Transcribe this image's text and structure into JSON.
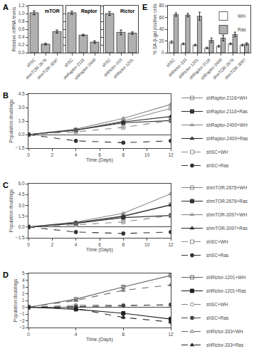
{
  "chart_data": [
    {
      "type": "bar",
      "title": "mTOR",
      "annotations": [
        "A"
      ],
      "categories": [
        "shSC",
        "shmTOR-2676",
        "shmTOR-3097"
      ],
      "values": [
        1.02,
        0.22,
        0.54
      ],
      "errors": [
        0.05,
        0.02,
        0.04
      ],
      "color": "#b0b0b0",
      "ylabel": "Relative mRNA levels",
      "ylim": [
        0,
        1.2
      ],
      "yticks": [
        {
          "value": 0,
          "label": "0.0"
        },
        0.2,
        0.4,
        0.6,
        0.8,
        {
          "value": 1,
          "label": "1.0"
        },
        1.2
      ],
      "grid": false
    },
    {
      "type": "bar",
      "title": "Raptor",
      "categories": [
        "shSC",
        "shRaptor-2116",
        "shRaptor-2400"
      ],
      "values": [
        1.02,
        0.45,
        0.27
      ],
      "errors": [
        0.04,
        0.02,
        0.03
      ],
      "color": "#b0b0b0",
      "ylim": [
        0,
        1.2
      ],
      "yticks": [
        0,
        0.2,
        0.4,
        0.6,
        0.8,
        1
      ],
      "tick_labels": "x",
      "grid": false
    },
    {
      "type": "bar",
      "title": "Rictor",
      "categories": [
        "shSC",
        "shRictor-333",
        "shRictor-1201"
      ],
      "values": [
        1.0,
        0.52,
        0.5
      ],
      "errors": [
        0.05,
        0.06,
        0.03
      ],
      "color": "#b0b0b0",
      "ylim": [
        0,
        1.2
      ],
      "yticks": [
        0,
        0.2,
        0.4,
        0.6,
        0.8,
        1,
        1.2
      ],
      "tick_labels": "x",
      "grid": false
    },
    {
      "type": "line",
      "annotations": [
        "B"
      ],
      "xlabel": "Time (Days)",
      "ylabel": "Population doublings",
      "x": [
        0,
        4,
        8,
        12
      ],
      "xlim": [
        0,
        12
      ],
      "xticks": [
        0,
        2,
        4,
        6,
        8,
        10,
        12
      ],
      "ylim": [
        -1.5,
        4.5
      ],
      "yticks": [
        {
          "value": -1.5,
          "label": "−1.5"
        },
        {
          "value": 0,
          "label": "0.0"
        },
        1.5,
        {
          "value": 3,
          "label": "3.0"
        },
        4.5
      ],
      "legend": "right",
      "grid": false,
      "series": [
        {
          "name": "shRaptor-2116+WH",
          "values": [
            0,
            0.5,
            1.5,
            2.9
          ],
          "errors": [
            0,
            0.1,
            0.12,
            0.15
          ],
          "marker": "square-open",
          "line_style": "solid",
          "color": "#888888"
        },
        {
          "name": "shRaptor-2116+Ras",
          "values": [
            0,
            0.5,
            1.3,
            1.55
          ],
          "errors": [
            0,
            0.1,
            0.1,
            0.12
          ],
          "marker": "square",
          "line_style": "solid",
          "color": "#333333"
        },
        {
          "name": "shRaptor-2400+WH",
          "values": [
            0,
            0.6,
            1.8,
            3.35
          ],
          "errors": [
            0,
            0.1,
            0.12,
            0.15
          ],
          "marker": "triangle-up-open",
          "line_style": "solid",
          "color": "#888888"
        },
        {
          "name": "shRaptor-2400+Ras",
          "values": [
            0,
            0.5,
            1.4,
            2.0
          ],
          "errors": [
            0,
            0.1,
            0.1,
            0.12
          ],
          "marker": "triangle-up",
          "line_style": "solid",
          "color": "#333333"
        },
        {
          "name": "shSC+WH",
          "values": [
            0,
            0.3,
            0.8,
            1.55
          ],
          "errors": [
            0,
            0.08,
            0.08,
            0.1
          ],
          "marker": "square-open",
          "line_style": "dashed",
          "color": "#888888"
        },
        {
          "name": "shSC+Ras",
          "values": [
            0,
            -0.7,
            -0.9,
            -0.7
          ],
          "errors": [
            0,
            0.1,
            0.1,
            0.12
          ],
          "marker": "circle",
          "line_style": "dashed",
          "color": "#333333"
        }
      ]
    },
    {
      "type": "line",
      "annotations": [
        "C"
      ],
      "xlabel": "Time (Days)",
      "ylabel": "Population doublings",
      "x": [
        0,
        4,
        8,
        12
      ],
      "xlim": [
        0,
        12
      ],
      "xticks": [
        0,
        2,
        4,
        6,
        8,
        10,
        12
      ],
      "ylim": [
        -1.5,
        6.0
      ],
      "yticks": [
        {
          "value": -1.5,
          "label": "−1.5"
        },
        {
          "value": 0,
          "label": "0.0"
        },
        1.5,
        {
          "value": 3,
          "label": "3.0"
        },
        4.5,
        {
          "value": 6,
          "label": "6.0"
        }
      ],
      "legend": "right",
      "grid": false,
      "series": [
        {
          "name": "shmTOR-2676+WH",
          "values": [
            0,
            0.5,
            1.5,
            3.1
          ],
          "errors": [
            0,
            0.1,
            0.12,
            0.15
          ],
          "marker": "square-open",
          "line_style": "solid",
          "color": "#888888"
        },
        {
          "name": "shmTOR-2676+Ras",
          "values": [
            0,
            0.5,
            1.3,
            1.6
          ],
          "errors": [
            0,
            0.1,
            0.1,
            0.12
          ],
          "marker": "square",
          "line_style": "solid",
          "color": "#333333"
        },
        {
          "name": "shmTOR-3097+WH",
          "values": [
            0,
            0.7,
            1.9,
            4.6
          ],
          "errors": [
            0,
            0.1,
            0.12,
            0.15
          ],
          "marker": "triangle-up-open",
          "line_style": "solid",
          "color": "#888888"
        },
        {
          "name": "shmTOR-3097+Ras",
          "values": [
            0,
            0.6,
            1.5,
            3.05
          ],
          "errors": [
            0,
            0.1,
            0.1,
            0.12
          ],
          "marker": "triangle-up",
          "line_style": "solid",
          "color": "#333333"
        },
        {
          "name": "shSC+WH",
          "values": [
            0,
            0.3,
            0.7,
            1.6
          ],
          "errors": [
            0,
            0.08,
            0.08,
            0.1
          ],
          "marker": "square-open",
          "line_style": "dashed",
          "color": "#888888"
        },
        {
          "name": "shSC+Ras",
          "values": [
            0,
            -0.7,
            -0.9,
            -0.7
          ],
          "errors": [
            0,
            0.1,
            0.1,
            0.12
          ],
          "marker": "circle",
          "line_style": "dashed",
          "color": "#333333"
        }
      ]
    },
    {
      "type": "line",
      "annotations": [
        "D"
      ],
      "xlabel": "Time (Days)",
      "ylabel": "Population doublings",
      "x": [
        0,
        4,
        8,
        12
      ],
      "xlim": [
        0,
        12
      ],
      "xticks": [
        0,
        4,
        8,
        12
      ],
      "ylim": [
        -3.0,
        5.0
      ],
      "yticks": [
        -3,
        -2,
        -1,
        0,
        1,
        2,
        3,
        4,
        5
      ],
      "legend": "right",
      "grid": false,
      "series": [
        {
          "name": "shRictor-1201+WH",
          "values": [
            0,
            1.2,
            3.0,
            4.7
          ],
          "errors": [
            0,
            0.1,
            0.15,
            0.2
          ],
          "marker": "square-open",
          "line_style": "solid",
          "color": "#666666"
        },
        {
          "name": "shRictor-1201+Ras",
          "values": [
            0,
            -0.3,
            -0.9,
            -1.75
          ],
          "errors": [
            0,
            0.15,
            0.2,
            0.3
          ],
          "marker": "square",
          "line_style": "solid",
          "color": "#222222"
        },
        {
          "name": "shSC+WH",
          "values": [
            0,
            0.3,
            0.3,
            0.3
          ],
          "errors": [
            0,
            0.08,
            0.08,
            0.1
          ],
          "marker": "circle-open",
          "line_style": "dashed",
          "color": "#888888"
        },
        {
          "name": "shSC+Ras",
          "values": [
            0,
            0.1,
            0.2,
            0.4
          ],
          "errors": [
            0,
            0.08,
            0.08,
            0.1
          ],
          "marker": "circle",
          "line_style": "dashed",
          "color": "#444444"
        },
        {
          "name": "shRictor-333+WH",
          "values": [
            0,
            1.0,
            2.5,
            3.3
          ],
          "errors": [
            0,
            0.1,
            0.15,
            0.15
          ],
          "marker": "triangle-up-open",
          "line_style": "dashed",
          "color": "#666666"
        },
        {
          "name": "shRictor-333+Ras",
          "values": [
            0,
            -0.2,
            -1.5,
            -2.2
          ],
          "errors": [
            0,
            0.15,
            0.2,
            0.3
          ],
          "marker": "triangle-up",
          "line_style": "dashed",
          "color": "#222222"
        }
      ]
    },
    {
      "type": "bar",
      "annotations": [
        "E"
      ],
      "categories": [
        "shSC",
        "shRictor-333",
        "shRictor-1201",
        "shRaptor-2116",
        "shRaptor-2400",
        "shmTOR-2676",
        "shmTOR-3097"
      ],
      "ylabel": "% SA-β-gal positive cells",
      "ylim": [
        0,
        80
      ],
      "yticks": [
        0,
        20,
        40,
        60,
        80
      ],
      "legend": "upper right",
      "grid": false,
      "series": [
        {
          "name": "WH",
          "color": "#ffffff",
          "values": [
            18,
            15,
            13,
            8,
            11,
            15,
            13
          ],
          "errors": [
            2,
            1.5,
            1.5,
            1.5,
            1.5,
            1.5,
            1.5
          ]
        },
        {
          "name": "Ras",
          "color": "#b0b0b0",
          "values": [
            65,
            64,
            62,
            21,
            25,
            31,
            15
          ],
          "errors": [
            3,
            3,
            7,
            4,
            5,
            4,
            2
          ]
        }
      ]
    }
  ]
}
